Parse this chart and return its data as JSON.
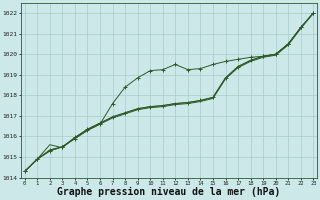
{
  "x_labels": [
    0,
    1,
    2,
    3,
    4,
    5,
    6,
    7,
    8,
    9,
    10,
    11,
    12,
    13,
    14,
    15,
    16,
    17,
    18,
    19,
    20,
    21,
    22,
    23
  ],
  "ylim": [
    1014.0,
    1022.5
  ],
  "xlim": [
    -0.3,
    23.3
  ],
  "yticks": [
    1014,
    1015,
    1016,
    1017,
    1018,
    1019,
    1020,
    1021,
    1022
  ],
  "xticks": [
    0,
    1,
    2,
    3,
    4,
    5,
    6,
    7,
    8,
    9,
    10,
    11,
    12,
    13,
    14,
    15,
    16,
    17,
    18,
    19,
    20,
    21,
    22,
    23
  ],
  "background_color": "#cce8e8",
  "grid_color": "#aacccc",
  "line_color": "#2d5a27",
  "xlabel": "Graphe pression niveau de la mer (hPa)",
  "xlabel_fontsize": 7,
  "series": [
    [
      1014.3,
      1014.9,
      1015.3,
      1015.5,
      1015.9,
      1016.3,
      1016.6,
      1017.6,
      1018.4,
      1018.85,
      1019.2,
      1019.25,
      1019.5,
      1019.25,
      1019.3,
      1019.5,
      1019.65,
      1019.75,
      1019.85,
      1019.9,
      1020.0,
      1020.5,
      1021.3,
      1022.0
    ],
    [
      1014.3,
      1014.9,
      1015.3,
      1015.5,
      1015.9,
      1016.3,
      1016.6,
      1016.9,
      1017.1,
      1017.3,
      1017.4,
      1017.45,
      1017.55,
      1017.6,
      1017.7,
      1017.85,
      1018.8,
      1019.35,
      1019.65,
      1019.85,
      1019.95,
      1020.45,
      1021.25,
      1022.0
    ],
    [
      1014.3,
      1014.9,
      1015.35,
      1015.5,
      1015.95,
      1016.35,
      1016.65,
      1016.95,
      1017.15,
      1017.35,
      1017.45,
      1017.5,
      1017.6,
      1017.65,
      1017.75,
      1017.9,
      1018.85,
      1019.4,
      1019.7,
      1019.9,
      1020.0,
      1020.5,
      1021.3,
      1022.0
    ],
    [
      1014.3,
      1014.9,
      1015.6,
      1015.45,
      1015.95,
      1016.35,
      1016.65,
      1016.95,
      1017.15,
      1017.35,
      1017.45,
      1017.5,
      1017.6,
      1017.65,
      1017.75,
      1017.9,
      1018.85,
      1019.4,
      1019.7,
      1019.9,
      1020.0,
      1020.5,
      1021.3,
      1022.0
    ]
  ]
}
